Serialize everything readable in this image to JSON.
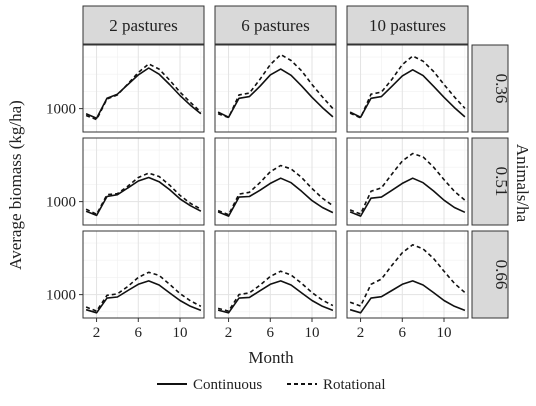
{
  "chart_data": {
    "type": "line",
    "facet_columns": [
      "2 pastures",
      "6 pastures",
      "10 pastures"
    ],
    "facet_rows": [
      "0.36",
      "0.51",
      "0.66"
    ],
    "xlabel": "Month",
    "ylabel": "Average biomass (kg/ha)",
    "row_strip_title": "Animals/ha",
    "x_ticks": [
      2,
      6,
      10
    ],
    "y_ticks": [
      1000
    ],
    "xlim": [
      0.7,
      12.3
    ],
    "ylim": [
      320,
      2850
    ],
    "grid": true,
    "legend": {
      "position": "bottom",
      "items": [
        {
          "name": "Continuous",
          "style": "solid"
        },
        {
          "name": "Rotational",
          "style": "dashed"
        }
      ]
    },
    "x": [
      1,
      2,
      3,
      4,
      5,
      6,
      7,
      8,
      9,
      10,
      11,
      12
    ],
    "panels": [
      {
        "col": "2 pastures",
        "row": "0.36",
        "series": [
          {
            "name": "Continuous",
            "values": [
              850,
              720,
              1300,
              1420,
              1700,
              1980,
              2180,
              2000,
              1700,
              1380,
              1100,
              850
            ]
          },
          {
            "name": "Rotational",
            "values": [
              800,
              680,
              1280,
              1400,
              1720,
              2050,
              2300,
              2150,
              1830,
              1480,
              1180,
              900
            ]
          }
        ]
      },
      {
        "col": "6 pastures",
        "row": "0.36",
        "series": [
          {
            "name": "Continuous",
            "values": [
              900,
              750,
              1300,
              1350,
              1650,
              1980,
              2150,
              1970,
              1660,
              1330,
              1030,
              760
            ]
          },
          {
            "name": "Rotational",
            "values": [
              850,
              740,
              1400,
              1450,
              1850,
              2280,
              2570,
              2400,
              2100,
              1700,
              1340,
              1000
            ]
          }
        ]
      },
      {
        "col": "10 pastures",
        "row": "0.36",
        "series": [
          {
            "name": "Continuous",
            "values": [
              900,
              750,
              1300,
              1350,
              1650,
              1950,
              2130,
              1960,
              1650,
              1330,
              1030,
              760
            ]
          },
          {
            "name": "Rotational",
            "values": [
              870,
              730,
              1420,
              1480,
              1850,
              2280,
              2530,
              2380,
              2080,
              1700,
              1340,
              1010
            ]
          }
        ]
      },
      {
        "col": "2 pastures",
        "row": "0.51",
        "series": [
          {
            "name": "Continuous",
            "values": [
              720,
              600,
              1150,
              1200,
              1400,
              1600,
              1700,
              1580,
              1350,
              1080,
              880,
              720
            ]
          },
          {
            "name": "Rotational",
            "values": [
              780,
              630,
              1200,
              1230,
              1450,
              1700,
              1830,
              1730,
              1480,
              1180,
              950,
              780
            ]
          }
        ]
      },
      {
        "col": "6 pastures",
        "row": "0.51",
        "series": [
          {
            "name": "Continuous",
            "values": [
              700,
              580,
              1130,
              1150,
              1330,
              1530,
              1680,
              1550,
              1300,
              1030,
              830,
              680
            ]
          },
          {
            "name": "Rotational",
            "values": [
              740,
              620,
              1220,
              1270,
              1550,
              1870,
              2050,
              1950,
              1700,
              1380,
              1100,
              880
            ]
          }
        ]
      },
      {
        "col": "10 pastures",
        "row": "0.51",
        "series": [
          {
            "name": "Continuous",
            "values": [
              700,
              580,
              1100,
              1130,
              1330,
              1530,
              1680,
              1550,
              1310,
              1040,
              830,
              690
            ]
          },
          {
            "name": "Rotational",
            "values": [
              760,
              640,
              1300,
              1400,
              1800,
              2180,
              2400,
              2300,
              2000,
              1640,
              1300,
              1040
            ]
          }
        ]
      },
      {
        "col": "2 pastures",
        "row": "0.66",
        "series": [
          {
            "name": "Continuous",
            "values": [
              560,
              470,
              900,
              930,
              1120,
              1300,
              1400,
              1280,
              1050,
              830,
              660,
              540
            ]
          },
          {
            "name": "Rotational",
            "values": [
              640,
              520,
              980,
              1020,
              1240,
              1500,
              1650,
              1560,
              1300,
              1030,
              820,
              660
            ]
          }
        ]
      },
      {
        "col": "6 pastures",
        "row": "0.66",
        "series": [
          {
            "name": "Continuous",
            "values": [
              550,
              470,
              900,
              920,
              1110,
              1300,
              1400,
              1280,
              1050,
              830,
              660,
              540
            ]
          },
          {
            "name": "Rotational",
            "values": [
              600,
              520,
              1000,
              1050,
              1270,
              1530,
              1680,
              1570,
              1330,
              1060,
              840,
              680
            ]
          }
        ]
      },
      {
        "col": "10 pastures",
        "row": "0.66",
        "series": [
          {
            "name": "Continuous",
            "values": [
              560,
              470,
              900,
              940,
              1120,
              1300,
              1400,
              1280,
              1060,
              830,
              660,
              540
            ]
          },
          {
            "name": "Rotational",
            "values": [
              780,
              670,
              1300,
              1450,
              1850,
              2220,
              2450,
              2330,
              2050,
              1680,
              1330,
              1060
            ]
          }
        ]
      }
    ]
  }
}
